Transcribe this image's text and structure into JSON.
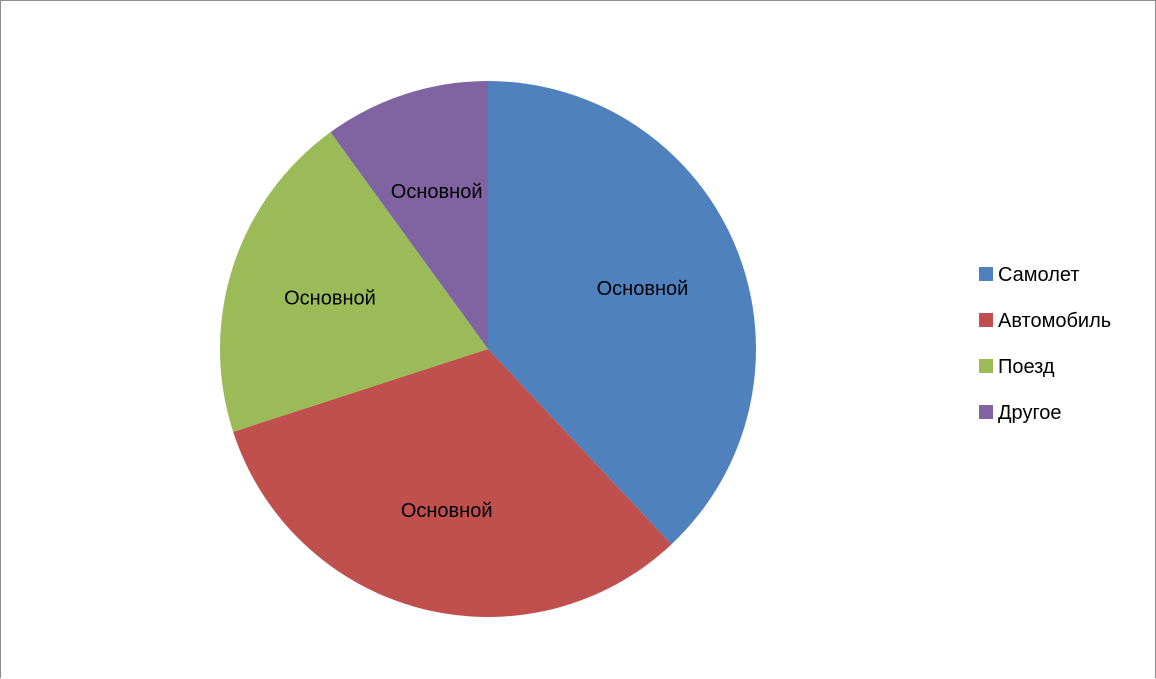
{
  "chart_data": {
    "type": "pie",
    "title": "",
    "start_angle_deg": 0,
    "direction": "clockwise",
    "legend_position": "right",
    "slices": [
      {
        "name": "Самолет",
        "value": 38,
        "color": "#4F81BD",
        "label": "Основной"
      },
      {
        "name": "Автомобиль",
        "value": 32,
        "color": "#C0504D",
        "label": "Основной"
      },
      {
        "name": "Поезд",
        "value": 20,
        "color": "#9BBB59",
        "label": "Основной"
      },
      {
        "name": "Другое",
        "value": 10,
        "color": "#8064A2",
        "label": "Основной"
      }
    ]
  }
}
